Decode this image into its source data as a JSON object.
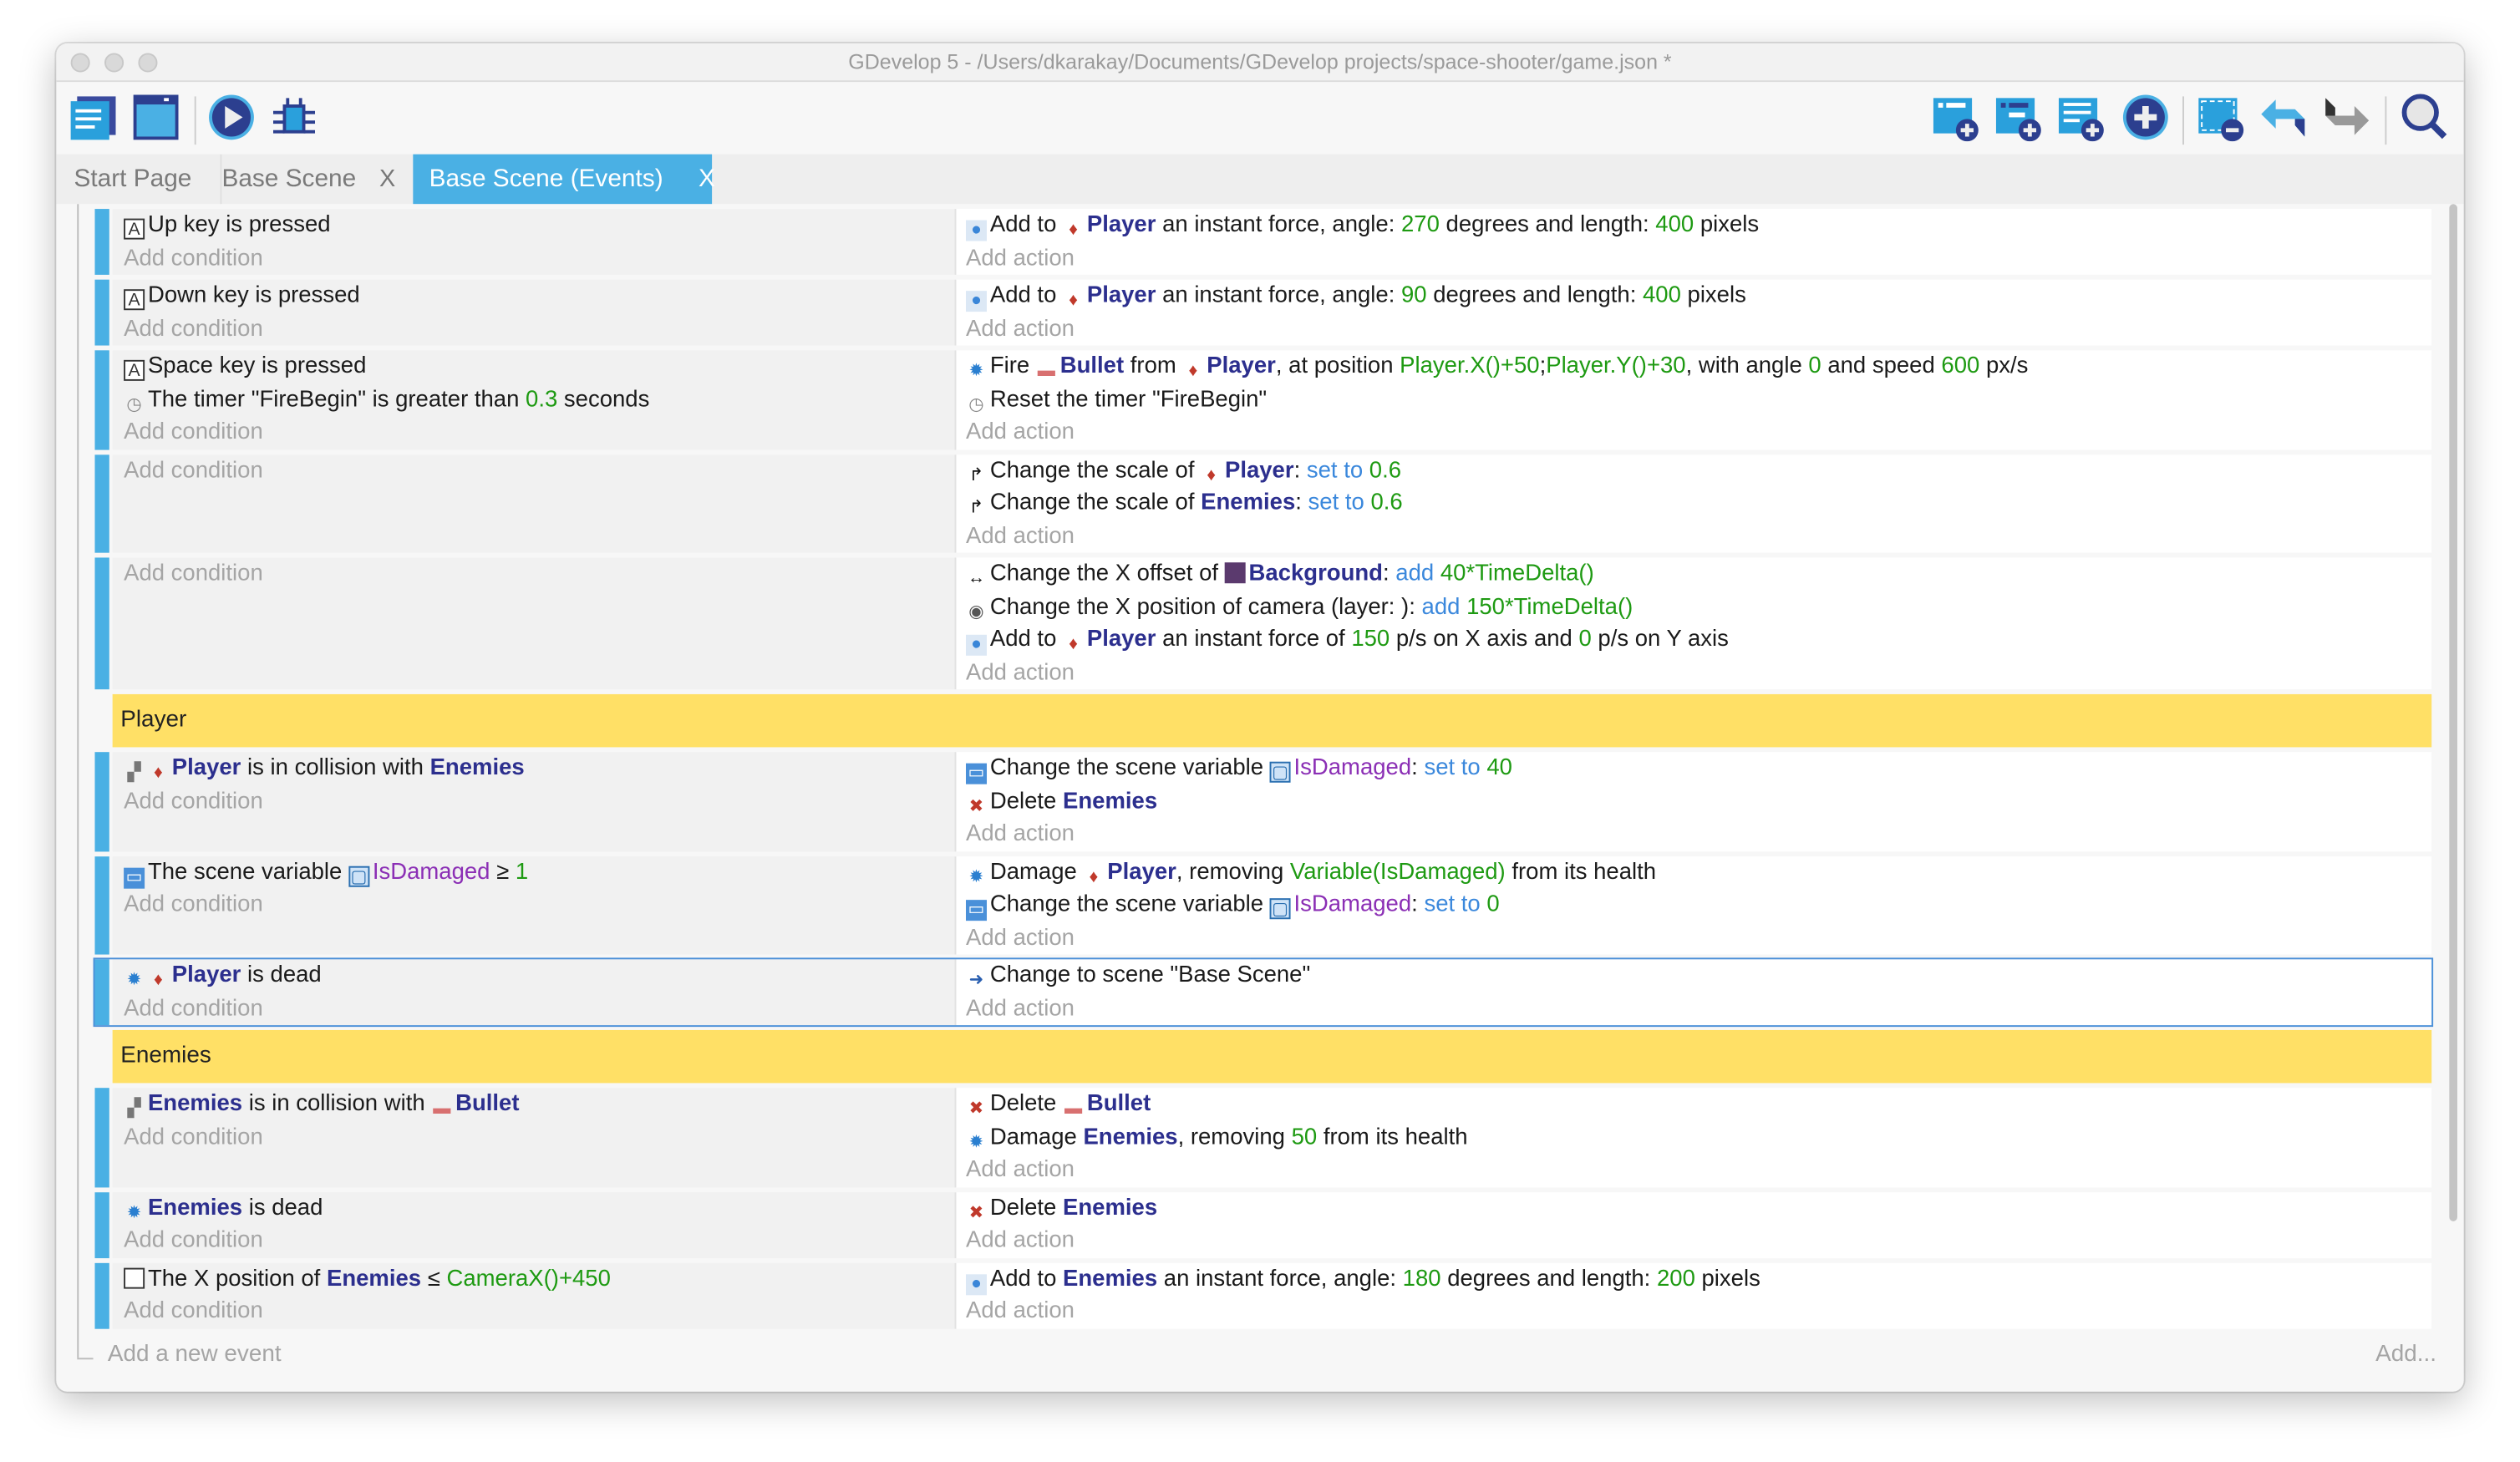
{
  "window": {
    "title": "GDevelop 5 - /Users/dkarakay/Documents/GDevelop projects/space-shooter/game.json *"
  },
  "toolbar": {
    "left": [
      "project-manager-icon",
      "scene-editor-icon",
      "preview-play-icon",
      "debugger-icon"
    ],
    "right": [
      "add-event-icon",
      "add-sub-event-icon",
      "add-comment-icon",
      "add-other-icon",
      "delete-selected-icon",
      "undo-icon",
      "redo-icon",
      "search-icon"
    ]
  },
  "tabs": [
    {
      "label": "Start Page",
      "closable": false,
      "active": false
    },
    {
      "label": "Base Scene",
      "closable": true,
      "active": false
    },
    {
      "label": "Base Scene (Events)",
      "closable": true,
      "active": true
    }
  ],
  "close_glyph": "X",
  "labels": {
    "add_condition": "Add condition",
    "add_action": "Add action",
    "add_event": "Add a new event",
    "add_more": "Add..."
  },
  "colors": {
    "accent": "#4ab0e4",
    "group": "#ffe066",
    "object": "#2c2f8e",
    "value": "#1e9a12",
    "operator": "#3b88dc",
    "variable": "#8b2fb5"
  },
  "events": [
    {
      "type": "standard",
      "conditions": [
        [
          {
            "icon": "keyboard"
          },
          {
            "t": "Up"
          },
          {
            "t": " key is pressed"
          }
        ]
      ],
      "actions": [
        [
          {
            "icon": "force"
          },
          {
            "t": "Add to "
          },
          {
            "icon": "player"
          },
          {
            "t": "Player",
            "c": "o"
          },
          {
            "t": " an instant force, angle: "
          },
          {
            "t": "270",
            "c": "g"
          },
          {
            "t": " degrees and length: "
          },
          {
            "t": "400",
            "c": "g"
          },
          {
            "t": " pixels"
          }
        ]
      ]
    },
    {
      "type": "standard",
      "conditions": [
        [
          {
            "icon": "keyboard"
          },
          {
            "t": "Down"
          },
          {
            "t": " key is pressed"
          }
        ]
      ],
      "actions": [
        [
          {
            "icon": "force"
          },
          {
            "t": "Add to "
          },
          {
            "icon": "player"
          },
          {
            "t": "Player",
            "c": "o"
          },
          {
            "t": " an instant force, angle: "
          },
          {
            "t": "90",
            "c": "g"
          },
          {
            "t": " degrees and length: "
          },
          {
            "t": "400",
            "c": "g"
          },
          {
            "t": " pixels"
          }
        ]
      ]
    },
    {
      "type": "standard",
      "conditions": [
        [
          {
            "icon": "keyboard"
          },
          {
            "t": "Space"
          },
          {
            "t": " key is pressed"
          }
        ],
        [
          {
            "icon": "timer"
          },
          {
            "t": "The timer \"FireBegin\" is greater than "
          },
          {
            "t": "0.3",
            "c": "g"
          },
          {
            "t": " seconds"
          }
        ]
      ],
      "actions": [
        [
          {
            "icon": "gear"
          },
          {
            "t": "Fire "
          },
          {
            "icon": "bullet"
          },
          {
            "t": "Bullet",
            "c": "o"
          },
          {
            "t": " from "
          },
          {
            "icon": "player"
          },
          {
            "t": "Player",
            "c": "o"
          },
          {
            "t": ", at position "
          },
          {
            "t": "Player.X()+50",
            "c": "g"
          },
          {
            "t": ";"
          },
          {
            "t": "Player.Y()+30",
            "c": "g"
          },
          {
            "t": ", with angle "
          },
          {
            "t": "0",
            "c": "g"
          },
          {
            "t": " and speed "
          },
          {
            "t": "600",
            "c": "g"
          },
          {
            "t": " px/s"
          }
        ],
        [
          {
            "icon": "timer"
          },
          {
            "t": "Reset the timer \"FireBegin\""
          }
        ]
      ]
    },
    {
      "type": "standard",
      "conditions": [],
      "actions": [
        [
          {
            "icon": "scale"
          },
          {
            "t": "Change the scale of "
          },
          {
            "icon": "player"
          },
          {
            "t": "Player",
            "c": "o"
          },
          {
            "t": ": "
          },
          {
            "t": "set to",
            "c": "b"
          },
          {
            "t": " "
          },
          {
            "t": "0.6",
            "c": "g"
          }
        ],
        [
          {
            "icon": "scale"
          },
          {
            "t": "Change the scale of "
          },
          {
            "t": "Enemies",
            "c": "o"
          },
          {
            "t": ": "
          },
          {
            "t": "set to",
            "c": "b"
          },
          {
            "t": " "
          },
          {
            "t": "0.6",
            "c": "g"
          }
        ]
      ]
    },
    {
      "type": "standard",
      "conditions": [],
      "actions": [
        [
          {
            "icon": "offset"
          },
          {
            "t": "Change the X offset of "
          },
          {
            "icon": "background"
          },
          {
            "t": "Background",
            "c": "o"
          },
          {
            "t": ": "
          },
          {
            "t": "add",
            "c": "b"
          },
          {
            "t": " "
          },
          {
            "t": "40*TimeDelta()",
            "c": "g"
          }
        ],
        [
          {
            "icon": "camera"
          },
          {
            "t": "Change the X position of camera  (layer: ): "
          },
          {
            "t": "add",
            "c": "b"
          },
          {
            "t": " "
          },
          {
            "t": "150*TimeDelta()",
            "c": "g"
          }
        ],
        [
          {
            "icon": "force"
          },
          {
            "t": "Add to "
          },
          {
            "icon": "player"
          },
          {
            "t": "Player",
            "c": "o"
          },
          {
            "t": " an instant force of "
          },
          {
            "t": "150",
            "c": "g"
          },
          {
            "t": " p/s on X axis and "
          },
          {
            "t": "0",
            "c": "g"
          },
          {
            "t": " p/s on Y axis"
          }
        ]
      ]
    },
    {
      "type": "group",
      "title": "Player"
    },
    {
      "type": "standard",
      "conditions": [
        [
          {
            "icon": "collision"
          },
          {
            "icon": "player"
          },
          {
            "t": "Player",
            "c": "o"
          },
          {
            "t": " is in collision with "
          },
          {
            "t": "Enemies",
            "c": "o"
          }
        ]
      ],
      "actions": [
        [
          {
            "icon": "variable"
          },
          {
            "t": "Change the scene variable "
          },
          {
            "icon": "var-small"
          },
          {
            "t": "IsDamaged",
            "c": "v"
          },
          {
            "t": ": "
          },
          {
            "t": "set to",
            "c": "b"
          },
          {
            "t": " "
          },
          {
            "t": "40",
            "c": "g"
          }
        ],
        [
          {
            "icon": "delete"
          },
          {
            "t": "Delete "
          },
          {
            "t": "Enemies",
            "c": "o"
          }
        ]
      ]
    },
    {
      "type": "standard",
      "conditions": [
        [
          {
            "icon": "variable"
          },
          {
            "t": "The scene variable "
          },
          {
            "icon": "var-small"
          },
          {
            "t": "IsDamaged",
            "c": "v"
          },
          {
            "t": " ≥ "
          },
          {
            "t": "1",
            "c": "g"
          }
        ]
      ],
      "actions": [
        [
          {
            "icon": "gear"
          },
          {
            "t": "Damage "
          },
          {
            "icon": "player"
          },
          {
            "t": "Player",
            "c": "o"
          },
          {
            "t": ", removing "
          },
          {
            "t": "Variable(IsDamaged)",
            "c": "g"
          },
          {
            "t": " from its health"
          }
        ],
        [
          {
            "icon": "variable"
          },
          {
            "t": "Change the scene variable "
          },
          {
            "icon": "var-small"
          },
          {
            "t": "IsDamaged",
            "c": "v"
          },
          {
            "t": ": "
          },
          {
            "t": "set to",
            "c": "b"
          },
          {
            "t": " "
          },
          {
            "t": "0",
            "c": "g"
          }
        ]
      ]
    },
    {
      "type": "standard",
      "selected": true,
      "conditions": [
        [
          {
            "icon": "gear"
          },
          {
            "icon": "player"
          },
          {
            "t": "Player",
            "c": "o"
          },
          {
            "t": " is dead"
          }
        ]
      ],
      "actions": [
        [
          {
            "icon": "scene-arrow"
          },
          {
            "t": "Change to scene \"Base Scene\""
          }
        ]
      ]
    },
    {
      "type": "group",
      "title": "Enemies"
    },
    {
      "type": "standard",
      "conditions": [
        [
          {
            "icon": "collision"
          },
          {
            "t": "Enemies",
            "c": "o"
          },
          {
            "t": " is in collision with "
          },
          {
            "icon": "bullet"
          },
          {
            "t": "Bullet",
            "c": "o"
          }
        ]
      ],
      "actions": [
        [
          {
            "icon": "delete"
          },
          {
            "t": "Delete "
          },
          {
            "icon": "bullet"
          },
          {
            "t": "Bullet",
            "c": "o"
          }
        ],
        [
          {
            "icon": "gear"
          },
          {
            "t": "Damage "
          },
          {
            "t": "Enemies",
            "c": "o"
          },
          {
            "t": ", removing "
          },
          {
            "t": "50",
            "c": "g"
          },
          {
            "t": " from its health"
          }
        ]
      ]
    },
    {
      "type": "standard",
      "conditions": [
        [
          {
            "icon": "gear"
          },
          {
            "t": "Enemies",
            "c": "o"
          },
          {
            "t": " is dead"
          }
        ]
      ],
      "actions": [
        [
          {
            "icon": "delete"
          },
          {
            "t": "Delete "
          },
          {
            "t": "Enemies",
            "c": "o"
          }
        ]
      ]
    },
    {
      "type": "standard",
      "conditions": [
        [
          {
            "icon": "position"
          },
          {
            "t": "The X position of "
          },
          {
            "t": "Enemies",
            "c": "o"
          },
          {
            "t": " ≤ "
          },
          {
            "t": "CameraX()+450",
            "c": "g"
          }
        ]
      ],
      "actions": [
        [
          {
            "icon": "force"
          },
          {
            "t": "Add to "
          },
          {
            "t": "Enemies",
            "c": "o"
          },
          {
            "t": " an instant force, angle: "
          },
          {
            "t": "180",
            "c": "g"
          },
          {
            "t": " degrees and length: "
          },
          {
            "t": "200",
            "c": "g"
          },
          {
            "t": " pixels"
          }
        ]
      ]
    }
  ]
}
